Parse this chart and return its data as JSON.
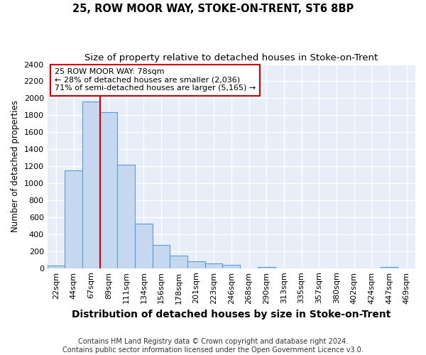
{
  "title": "25, ROW MOOR WAY, STOKE-ON-TRENT, ST6 8BP",
  "subtitle": "Size of property relative to detached houses in Stoke-on-Trent",
  "xlabel": "Distribution of detached houses by size in Stoke-on-Trent",
  "ylabel": "Number of detached properties",
  "categories": [
    "22sqm",
    "44sqm",
    "67sqm",
    "89sqm",
    "111sqm",
    "134sqm",
    "156sqm",
    "178sqm",
    "201sqm",
    "223sqm",
    "246sqm",
    "268sqm",
    "290sqm",
    "313sqm",
    "335sqm",
    "357sqm",
    "380sqm",
    "402sqm",
    "424sqm",
    "447sqm",
    "469sqm"
  ],
  "values": [
    30,
    1150,
    1960,
    1840,
    1220,
    520,
    270,
    150,
    80,
    55,
    42,
    0,
    15,
    0,
    0,
    0,
    0,
    0,
    0,
    10,
    0
  ],
  "bar_color": "#c5d8f0",
  "bar_edge_color": "#5b9bd5",
  "background_color": "#e8eef8",
  "grid_color": "#ffffff",
  "annotation_line_category_index": 2.5,
  "annotation_text_line1": "25 ROW MOOR WAY: 78sqm",
  "annotation_text_line2": "← 28% of detached houses are smaller (2,036)",
  "annotation_text_line3": "71% of semi-detached houses are larger (5,165) →",
  "annotation_box_color": "#ffffff",
  "annotation_box_edge_color": "#cc0000",
  "red_line_color": "#cc0000",
  "ylim": [
    0,
    2400
  ],
  "yticks": [
    0,
    200,
    400,
    600,
    800,
    1000,
    1200,
    1400,
    1600,
    1800,
    2000,
    2200,
    2400
  ],
  "footer_line1": "Contains HM Land Registry data © Crown copyright and database right 2024.",
  "footer_line2": "Contains public sector information licensed under the Open Government Licence v3.0.",
  "title_fontsize": 10.5,
  "subtitle_fontsize": 9.5,
  "xlabel_fontsize": 10,
  "ylabel_fontsize": 8.5,
  "tick_fontsize": 8,
  "annotation_fontsize": 8,
  "footer_fontsize": 7
}
